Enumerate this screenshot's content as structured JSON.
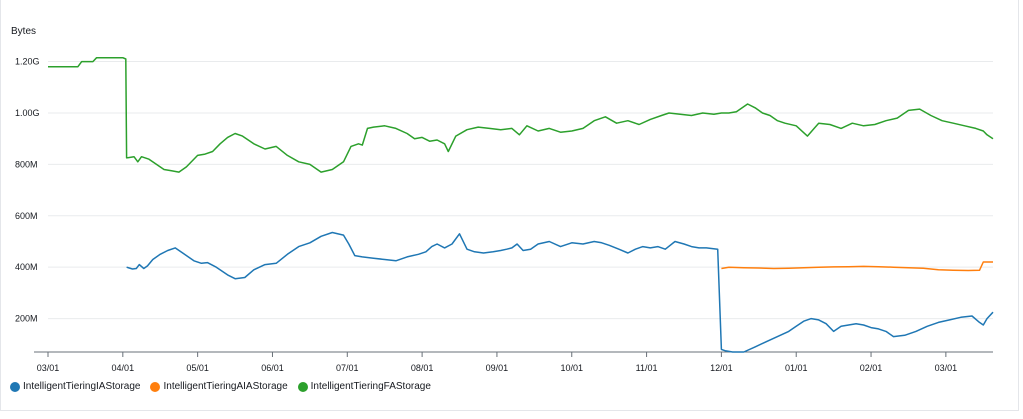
{
  "chart_data": {
    "type": "line",
    "ylabel": "Bytes",
    "y_ticks": [
      "1.20G",
      "1.00G",
      "800M",
      "600M",
      "400M",
      "200M"
    ],
    "y_tick_values": [
      1200,
      1000,
      800,
      600,
      400,
      200
    ],
    "ylim": [
      70,
      1280
    ],
    "y_unit": "millions of bytes",
    "x_ticks": [
      "03/01",
      "04/01",
      "05/01",
      "06/01",
      "07/01",
      "08/01",
      "09/01",
      "10/01",
      "11/01",
      "12/01",
      "01/01",
      "02/01",
      "03/01"
    ],
    "xlim": [
      0,
      12.63
    ],
    "x_unit": "months after the first 03/01 tick",
    "grid": true,
    "legend_position": "bottom-left",
    "series": [
      {
        "name": "IntelligentTieringIAStorage",
        "color": "#1f77b4",
        "x": [
          1.05,
          1.13,
          1.18,
          1.22,
          1.28,
          1.33,
          1.4,
          1.5,
          1.6,
          1.7,
          1.8,
          1.95,
          2.05,
          2.13,
          2.25,
          2.4,
          2.5,
          2.63,
          2.75,
          2.9,
          3.05,
          3.2,
          3.35,
          3.5,
          3.65,
          3.8,
          3.95,
          4.02,
          4.1,
          4.2,
          4.35,
          4.5,
          4.65,
          4.8,
          4.95,
          5.05,
          5.13,
          5.2,
          5.3,
          5.4,
          5.5,
          5.6,
          5.7,
          5.82,
          5.95,
          6.05,
          6.13,
          6.2,
          6.27,
          6.35,
          6.45,
          6.55,
          6.7,
          6.85,
          7.0,
          7.15,
          7.3,
          7.4,
          7.5,
          7.63,
          7.75,
          7.85,
          7.95,
          8.05,
          8.15,
          8.25,
          8.38,
          8.5,
          8.6,
          8.7,
          8.8,
          8.95,
          9.0,
          9.05,
          9.15,
          9.3,
          9.45,
          9.6,
          9.75,
          9.9,
          10.0,
          10.1,
          10.2,
          10.3,
          10.4,
          10.5,
          10.6,
          10.7,
          10.8,
          10.9,
          11.0,
          11.1,
          11.2,
          11.3,
          11.45,
          11.6,
          11.75,
          11.9,
          12.05,
          12.2,
          12.35,
          12.45,
          12.5,
          12.55,
          12.63
        ],
        "y": [
          400,
          393,
          395,
          410,
          395,
          405,
          430,
          450,
          465,
          475,
          455,
          425,
          415,
          418,
          400,
          370,
          355,
          360,
          390,
          410,
          415,
          450,
          480,
          495,
          520,
          535,
          525,
          490,
          445,
          440,
          435,
          430,
          425,
          440,
          450,
          460,
          480,
          490,
          475,
          490,
          530,
          470,
          460,
          455,
          460,
          465,
          470,
          475,
          490,
          465,
          470,
          490,
          500,
          480,
          495,
          490,
          500,
          495,
          485,
          470,
          455,
          470,
          480,
          475,
          480,
          470,
          500,
          490,
          480,
          475,
          475,
          470,
          80,
          75,
          70,
          70,
          90,
          110,
          130,
          150,
          170,
          190,
          200,
          195,
          180,
          150,
          170,
          175,
          180,
          175,
          165,
          160,
          150,
          130,
          135,
          150,
          170,
          185,
          195,
          205,
          210,
          185,
          175,
          200,
          225
        ]
      },
      {
        "name": "IntelligentTieringAIAStorage",
        "color": "#ff7f0e",
        "x": [
          9.0,
          9.1,
          9.3,
          9.5,
          9.7,
          9.9,
          10.1,
          10.3,
          10.5,
          10.7,
          10.9,
          11.1,
          11.3,
          11.5,
          11.7,
          11.9,
          12.1,
          12.3,
          12.45,
          12.5,
          12.63
        ],
        "y": [
          395,
          400,
          398,
          397,
          395,
          396,
          398,
          400,
          401,
          402,
          403,
          402,
          400,
          398,
          396,
          390,
          388,
          387,
          388,
          420,
          420
        ]
      },
      {
        "name": "IntelligentTieringFAStorage",
        "color": "#2ca02c",
        "x": [
          0.0,
          0.4,
          0.45,
          0.6,
          0.65,
          1.0,
          1.04,
          1.05,
          1.15,
          1.2,
          1.25,
          1.35,
          1.45,
          1.55,
          1.65,
          1.75,
          1.85,
          2.0,
          2.1,
          2.2,
          2.3,
          2.4,
          2.5,
          2.6,
          2.75,
          2.9,
          3.05,
          3.2,
          3.35,
          3.5,
          3.65,
          3.8,
          3.95,
          4.05,
          4.15,
          4.2,
          4.27,
          4.35,
          4.5,
          4.65,
          4.8,
          4.9,
          5.0,
          5.1,
          5.2,
          5.3,
          5.35,
          5.45,
          5.6,
          5.75,
          5.9,
          6.05,
          6.2,
          6.3,
          6.4,
          6.55,
          6.7,
          6.85,
          7.0,
          7.15,
          7.3,
          7.45,
          7.6,
          7.75,
          7.9,
          8.05,
          8.2,
          8.3,
          8.45,
          8.6,
          8.75,
          8.9,
          9.0,
          9.1,
          9.2,
          9.35,
          9.45,
          9.55,
          9.65,
          9.75,
          9.85,
          10.0,
          10.15,
          10.3,
          10.45,
          10.6,
          10.75,
          10.9,
          11.05,
          11.2,
          11.35,
          11.5,
          11.65,
          11.8,
          11.95,
          12.1,
          12.25,
          12.4,
          12.5,
          12.55,
          12.63
        ],
        "y": [
          1180,
          1180,
          1200,
          1200,
          1215,
          1215,
          1210,
          825,
          830,
          810,
          830,
          820,
          800,
          780,
          775,
          770,
          790,
          835,
          840,
          850,
          880,
          905,
          920,
          910,
          880,
          860,
          870,
          835,
          810,
          800,
          770,
          780,
          810,
          870,
          880,
          875,
          940,
          945,
          950,
          940,
          920,
          900,
          905,
          890,
          895,
          880,
          850,
          910,
          935,
          945,
          940,
          935,
          940,
          915,
          950,
          930,
          940,
          925,
          930,
          940,
          970,
          985,
          960,
          970,
          955,
          975,
          990,
          1000,
          995,
          990,
          1000,
          995,
          1000,
          1000,
          1005,
          1035,
          1020,
          1000,
          990,
          970,
          960,
          950,
          910,
          960,
          955,
          940,
          960,
          950,
          955,
          970,
          980,
          1010,
          1015,
          990,
          970,
          960,
          950,
          940,
          930,
          915,
          900
        ]
      }
    ]
  }
}
